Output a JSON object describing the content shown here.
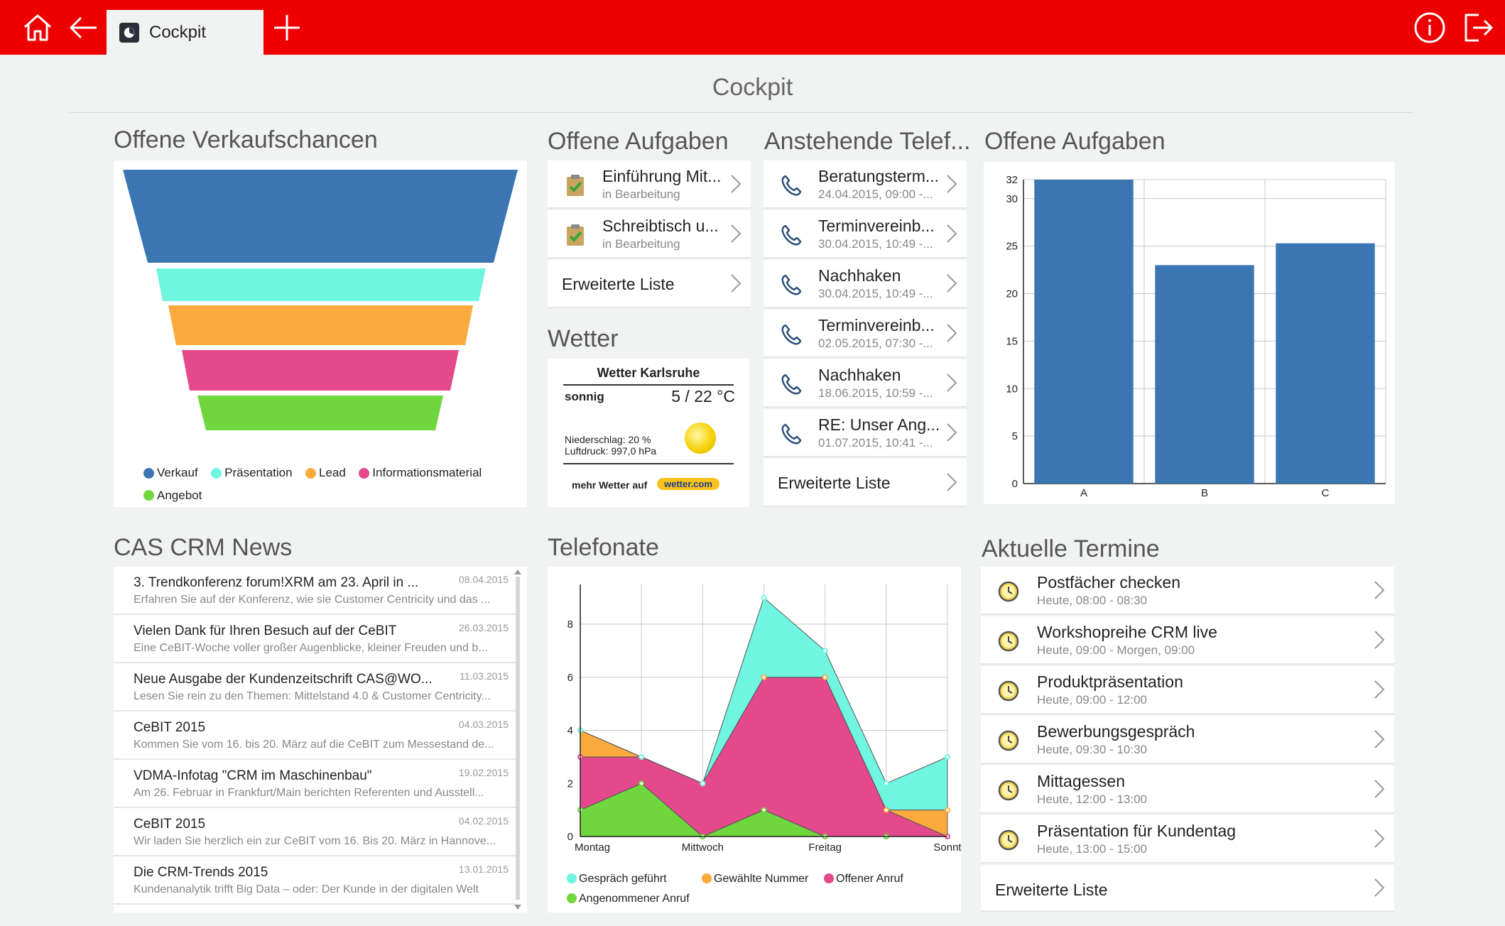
{
  "topbar": {
    "tab_label": "Cockpit",
    "home_icon": "home-icon",
    "back_icon": "back-arrow-icon",
    "add_icon": "plus-icon",
    "info_icon": "info-icon",
    "logout_icon": "logout-icon",
    "color": "#ee0000"
  },
  "page": {
    "title": "Cockpit"
  },
  "funnel": {
    "title": "Offene Verkaufschancen",
    "legend": [
      "Verkauf",
      "Präsentation",
      "Lead",
      "Informationsmaterial",
      "Angebot"
    ],
    "colors": [
      "#3b76b3",
      "#6ff5e0",
      "#fbab3e",
      "#e4498b",
      "#6fd63d"
    ]
  },
  "tasks": {
    "title": "Offene Aufgaben",
    "items": [
      {
        "title": "Einführung Mit...",
        "status": "in Bearbeitung"
      },
      {
        "title": "Schreibtisch u...",
        "status": "in Bearbeitung"
      }
    ],
    "more": "Erweiterte Liste"
  },
  "weather": {
    "title": "Wetter",
    "city": "Wetter Karlsruhe",
    "condition": "sonnig",
    "temp": "5 / 22 °C",
    "rain": "Niederschlag: 20 %",
    "pressure": "Luftdruck:  997,0 hPa",
    "more": "mehr Wetter auf",
    "brand": "wetter.com"
  },
  "calls": {
    "title": "Anstehende Telef...",
    "items": [
      {
        "title": "Beratungsterm...",
        "time": "24.04.2015, 09:00 -..."
      },
      {
        "title": "Terminvereinb...",
        "time": "30.04.2015, 10:49 -..."
      },
      {
        "title": "Nachhaken",
        "time": "30.04.2015, 10:49 -..."
      },
      {
        "title": "Terminvereinb...",
        "time": "02.05.2015, 07:30 -..."
      },
      {
        "title": "Nachhaken",
        "time": "18.06.2015, 10:59 -..."
      },
      {
        "title": "RE: Unser Ang...",
        "time": "01.07.2015, 10:41 -..."
      }
    ],
    "more": "Erweiterte Liste"
  },
  "tasks_chart": {
    "title": "Offene Aufgaben"
  },
  "news": {
    "title": "CAS CRM News",
    "items": [
      {
        "title": "3. Trendkonferenz forum!XRM am 23. April in ...",
        "date": "08.04.2015",
        "text": "Erfahren Sie auf der Konferenz, wie sie Customer Centricity und das ..."
      },
      {
        "title": "Vielen Dank für Ihren Besuch auf der CeBIT",
        "date": "26.03.2015",
        "text": "Eine CeBIT-Woche voller großer Augenblicke, kleiner Freuden und b..."
      },
      {
        "title": "Neue Ausgabe der Kundenzeitschrift CAS@WO...",
        "date": "11.03.2015",
        "text": "Lesen Sie rein zu den Themen: Mittelstand 4.0 & Customer Centricity..."
      },
      {
        "title": "CeBIT 2015",
        "date": "04.03.2015",
        "text": "Kommen Sie vom 16. bis 20. März auf die CeBIT zum Messestand de..."
      },
      {
        "title": "VDMA-Infotag \"CRM im Maschinenbau\"",
        "date": "19.02.2015",
        "text": "Am 26. Februar in Frankfurt/Main berichten Referenten und Ausstell..."
      },
      {
        "title": "CeBIT 2015",
        "date": "04.02.2015",
        "text": "Wir laden Sie herzlich ein zur CeBIT vom 16. Bis 20. März in Hannove..."
      },
      {
        "title": "Die CRM-Trends 2015",
        "date": "13.01.2015",
        "text": "Kundenanalytik trifft Big Data – oder: Der Kunde in der digitalen Welt"
      }
    ]
  },
  "calls_chart": {
    "title": "Telefonate"
  },
  "appointments": {
    "title": "Aktuelle Termine",
    "items": [
      {
        "title": "Postfächer checken",
        "time": "Heute, 08:00 - 08:30"
      },
      {
        "title": "Workshopreihe CRM live",
        "time": "Heute, 09:00 - Morgen, 09:00"
      },
      {
        "title": "Produktpräsentation",
        "time": "Heute, 09:00 - 12:00"
      },
      {
        "title": "Bewerbungsgespräch",
        "time": "Heute, 09:30 - 10:30"
      },
      {
        "title": "Mittagessen",
        "time": "Heute, 12:00 - 13:00"
      },
      {
        "title": "Präsentation für Kundentag",
        "time": "Heute, 13:00 - 15:00"
      }
    ],
    "more": "Erweiterte Liste"
  },
  "chart_data": [
    {
      "type": "funnel",
      "categories": [
        "Verkauf",
        "Präsentation",
        "Lead",
        "Informationsmaterial",
        "Angebot"
      ]
    },
    {
      "type": "bar",
      "categories": [
        "A",
        "B",
        "C"
      ],
      "values": [
        32,
        23,
        25.3
      ],
      "ylim": [
        0,
        32
      ],
      "yticks": [
        0,
        5,
        10,
        15,
        20,
        25,
        30,
        32
      ],
      "color": "#3b76b3",
      "grid": true
    },
    {
      "type": "area",
      "x": [
        "Montag",
        "",
        "Mittwoch",
        "",
        "Freitag",
        "",
        "Sonnt"
      ],
      "ylim": [
        0,
        9.5
      ],
      "yticks": [
        0,
        2,
        4,
        6,
        8
      ],
      "grid": true,
      "legend_position": "bottom",
      "series": [
        {
          "name": "Angenommener Anruf",
          "color": "#6fd63d",
          "values": [
            1,
            2,
            0,
            1,
            0,
            0,
            0
          ]
        },
        {
          "name": "Offener Anruf",
          "color": "#e4498b",
          "values": [
            2,
            1,
            2,
            5,
            6,
            1,
            0
          ]
        },
        {
          "name": "Gewählte Nummer",
          "color": "#fbab3e",
          "values": [
            1,
            0,
            0,
            0,
            0,
            0,
            1
          ]
        },
        {
          "name": "Gespräch geführt",
          "color": "#6ff5e0",
          "values": [
            0,
            0,
            0,
            3,
            1,
            1,
            2
          ]
        }
      ],
      "legend_order": [
        "Gespräch geführt",
        "Gewählte Nummer",
        "Offener Anruf",
        "Angenommener Anruf"
      ]
    }
  ]
}
